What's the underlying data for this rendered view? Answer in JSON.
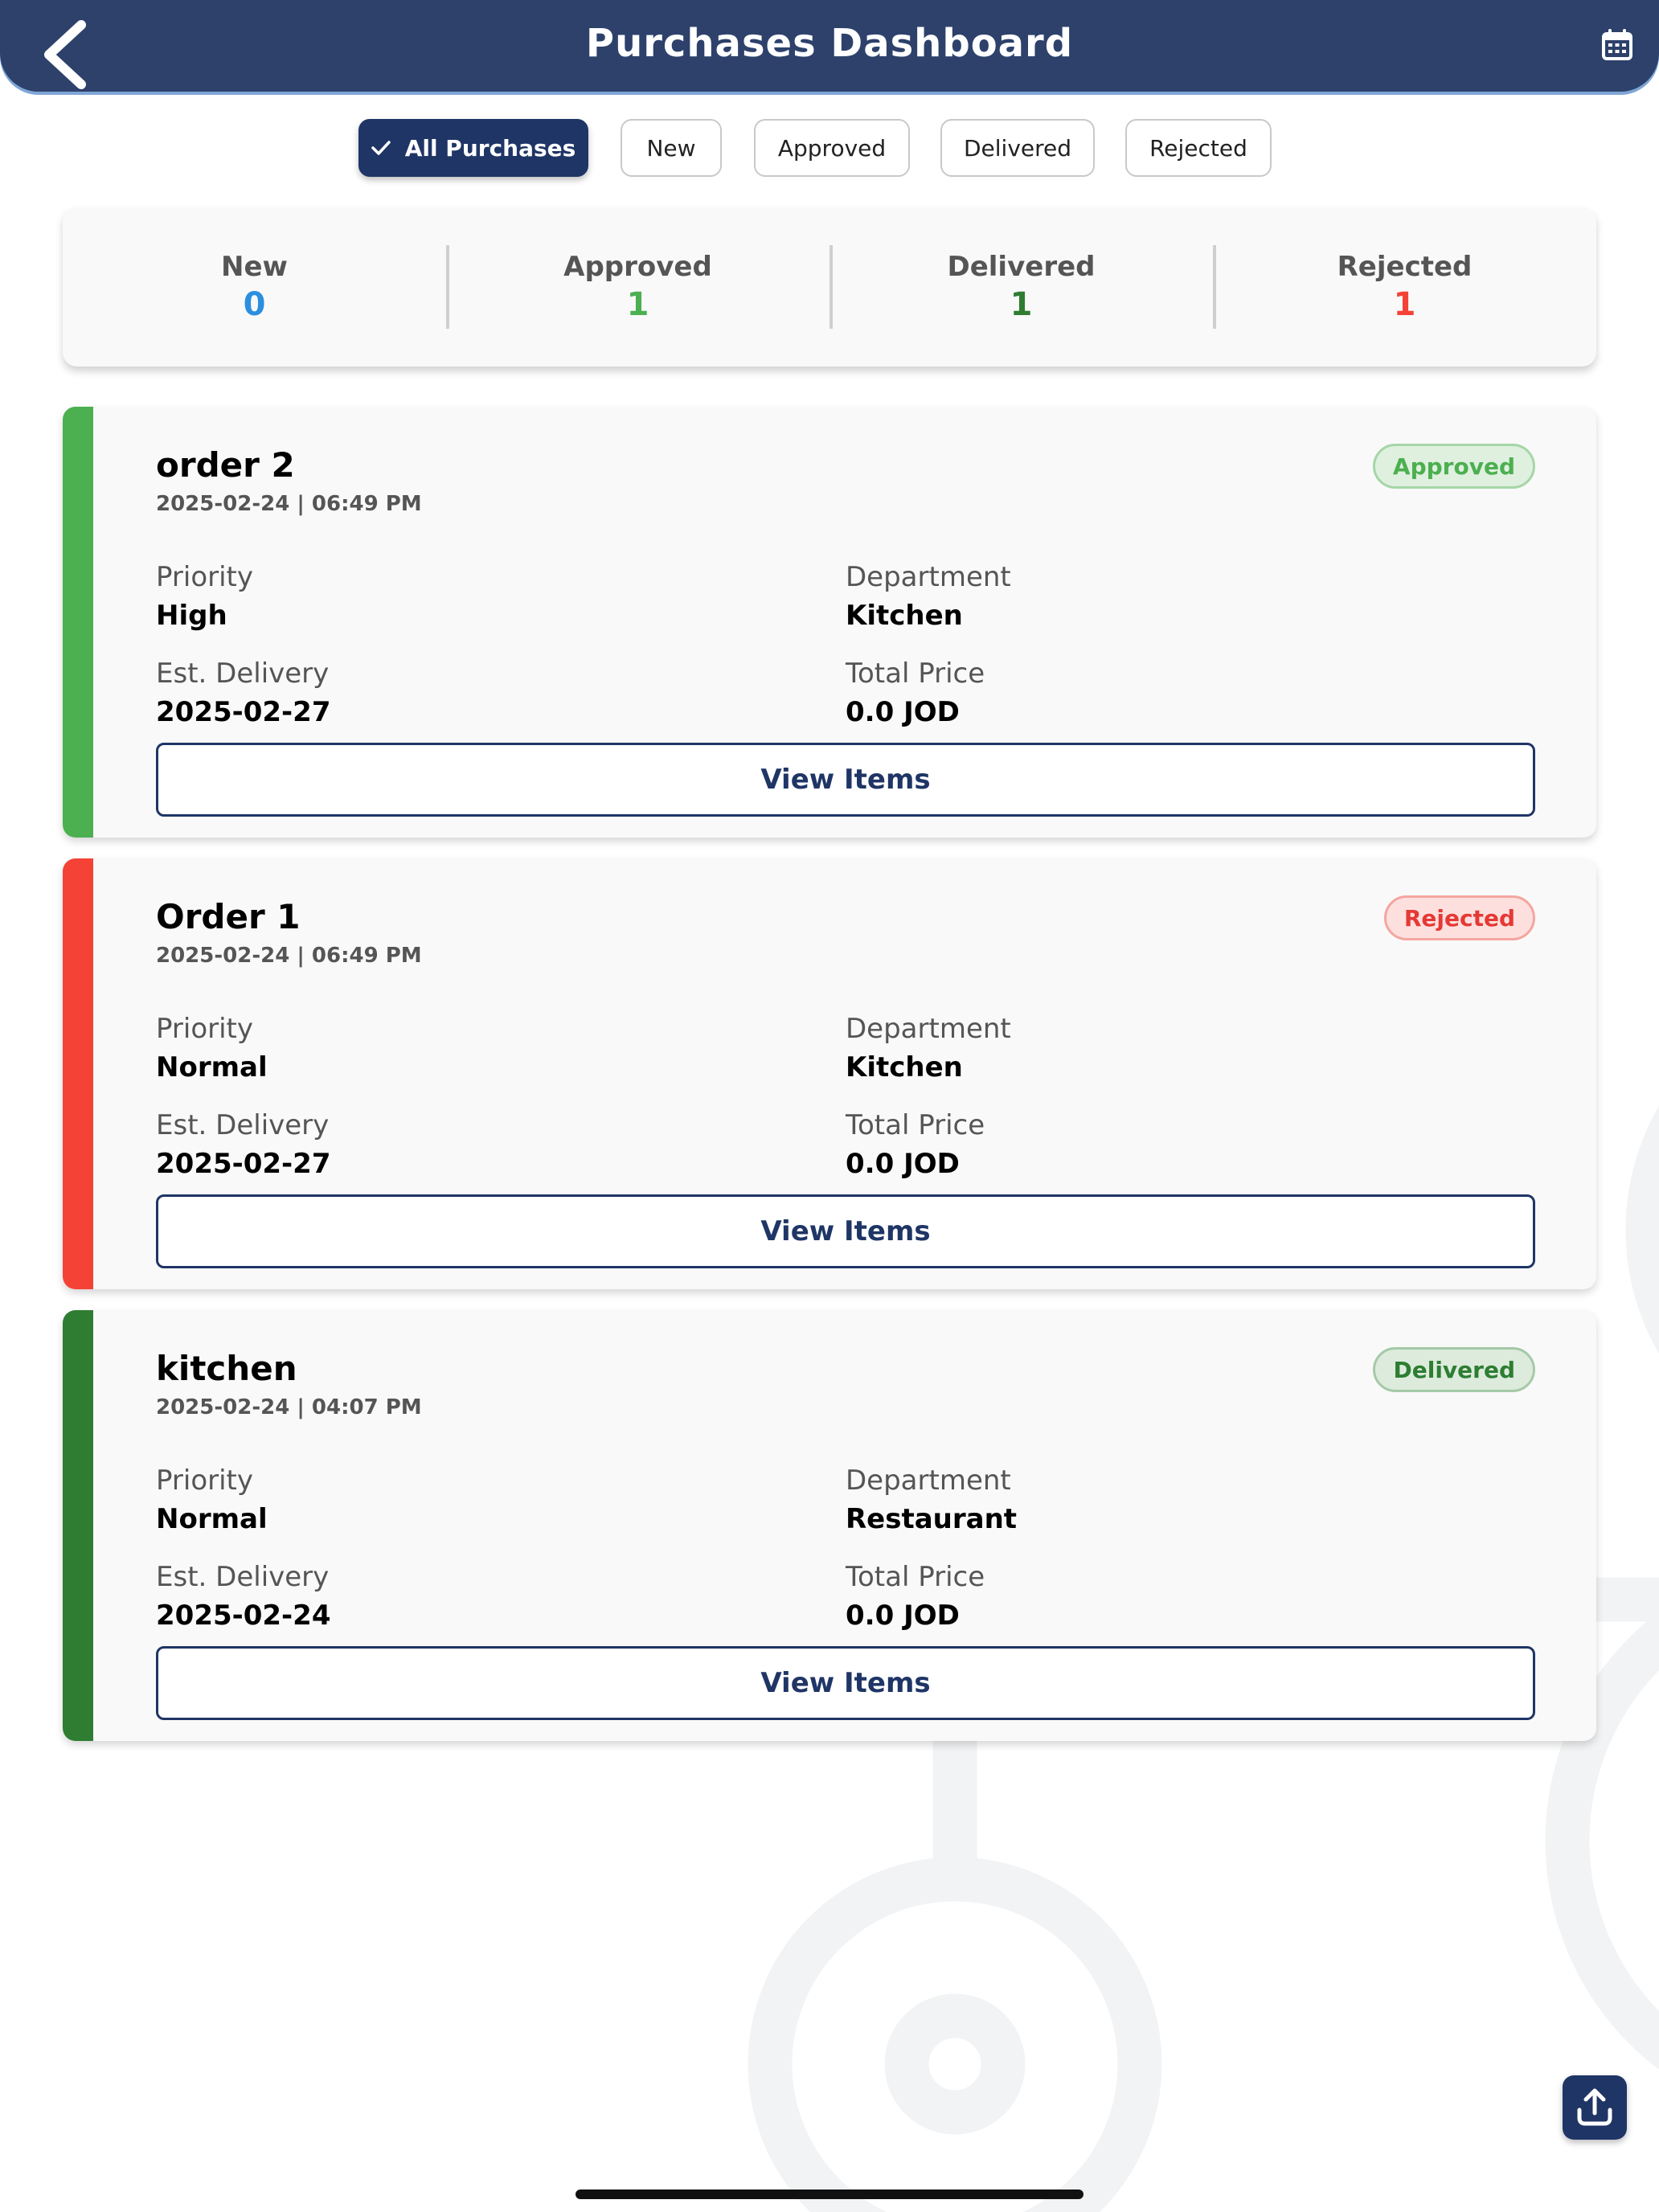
{
  "header": {
    "title": "Purchases Dashboard",
    "back_icon": "chevron-left-icon",
    "calendar_icon": "calendar-icon"
  },
  "filters": [
    {
      "label": "All Purchases",
      "active": true
    },
    {
      "label": "New",
      "active": false
    },
    {
      "label": "Approved",
      "active": false
    },
    {
      "label": "Delivered",
      "active": false
    },
    {
      "label": "Rejected",
      "active": false
    }
  ],
  "summary": [
    {
      "label": "New",
      "value": "0",
      "color": "#2b8fe0"
    },
    {
      "label": "Approved",
      "value": "1",
      "color": "#4caf50"
    },
    {
      "label": "Delivered",
      "value": "1",
      "color": "#2e7d32"
    },
    {
      "label": "Rejected",
      "value": "1",
      "color": "#f44336"
    }
  ],
  "labels": {
    "priority": "Priority",
    "department": "Department",
    "est_delivery": "Est. Delivery",
    "total_price": "Total Price",
    "view_items": "View Items"
  },
  "orders": [
    {
      "name": "order 2",
      "datetime": "2025-02-24 | 06:49 PM",
      "status": "Approved",
      "priority": "High",
      "department": "Kitchen",
      "est_delivery": "2025-02-27",
      "total_price": "0.0 JOD",
      "bar_color": "#4caf50",
      "badge_bg": "#dff0df",
      "badge_border": "#a5d6a7",
      "badge_text": "#4caf50"
    },
    {
      "name": "Order 1",
      "datetime": "2025-02-24 | 06:49 PM",
      "status": "Rejected",
      "priority": "Normal",
      "department": "Kitchen",
      "est_delivery": "2025-02-27",
      "total_price": "0.0 JOD",
      "bar_color": "#f44336",
      "badge_bg": "#fde0de",
      "badge_border": "#f5a5a0",
      "badge_text": "#e53935"
    },
    {
      "name": "kitchen",
      "datetime": "2025-02-24 | 04:07 PM",
      "status": "Delivered",
      "priority": "Normal",
      "department": "Restaurant",
      "est_delivery": "2025-02-24",
      "total_price": "0.0 JOD",
      "bar_color": "#2e7d32",
      "badge_bg": "#dcebdc",
      "badge_border": "#a5c9a7",
      "badge_text": "#2e7d32"
    }
  ],
  "fab": {
    "icon": "upload-icon"
  }
}
